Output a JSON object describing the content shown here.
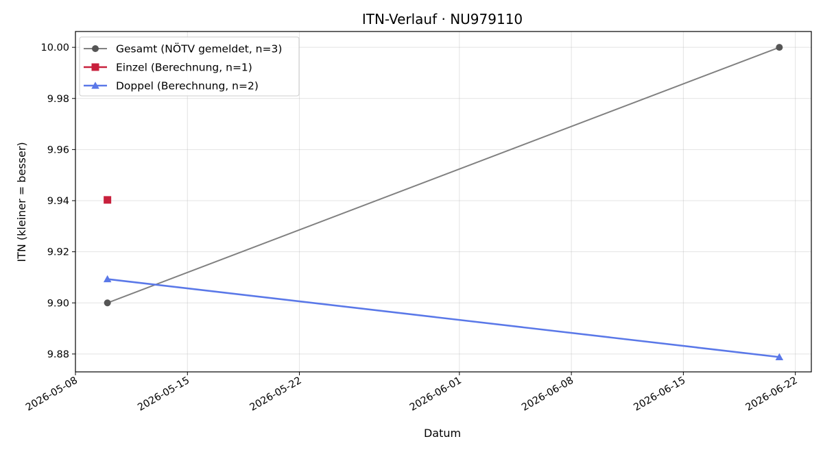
{
  "chart_data": {
    "type": "line",
    "title": "ITN-Verlauf · NU979110",
    "xlabel": "Datum",
    "ylabel": "ITN  (kleiner = besser)",
    "x_ticks": [
      "2026-05-08",
      "2026-05-15",
      "2026-05-22",
      "2026-06-01",
      "2026-06-08",
      "2026-06-15",
      "2026-06-22"
    ],
    "y_ticks": [
      "9.88",
      "9.90",
      "9.92",
      "9.94",
      "9.96",
      "9.98",
      "10.00"
    ],
    "xlim": [
      "2026-05-08",
      "2026-06-23"
    ],
    "ylim": [
      9.873,
      10.0062
    ],
    "grid": true,
    "legend_position": "top-left",
    "series": [
      {
        "name": "Gesamt (NÖTV gemeldet, n=3)",
        "color": "#808080",
        "marker": "circle",
        "marker_color": "#555555",
        "points": [
          {
            "x": "2026-05-10",
            "y": 9.9
          },
          {
            "x": "2026-06-21",
            "y": 10.0
          }
        ]
      },
      {
        "name": "Einzel (Berechnung, n=1)",
        "color": "#c8203c",
        "marker": "square",
        "marker_color": "#c8203c",
        "points": [
          {
            "x": "2026-05-10",
            "y": 9.9403
          }
        ]
      },
      {
        "name": "Doppel (Berechnung, n=2)",
        "color": "#5a78e8",
        "marker": "triangle",
        "marker_color": "#5a78e8",
        "points": [
          {
            "x": "2026-05-10",
            "y": 9.9093
          },
          {
            "x": "2026-06-21",
            "y": 9.8788
          }
        ]
      }
    ]
  }
}
